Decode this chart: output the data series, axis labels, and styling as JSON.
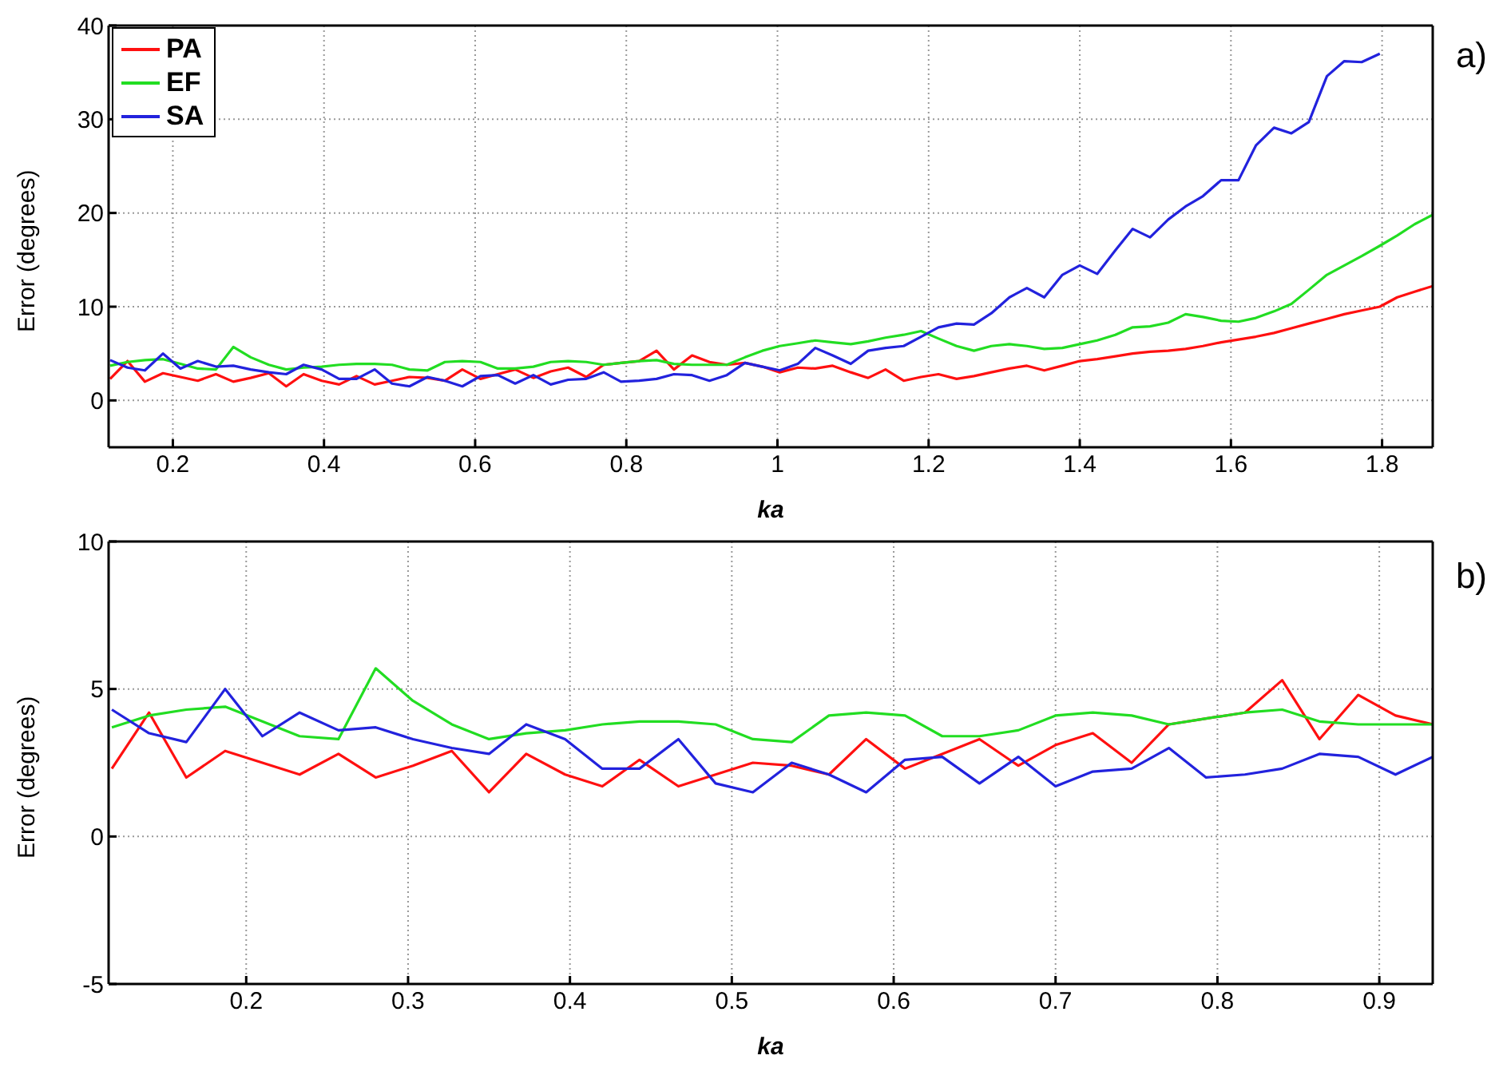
{
  "chart_data": [
    {
      "type": "line",
      "xlabel": "ka",
      "ylabel": "Error (degrees)",
      "annotations": [
        "a)"
      ],
      "xlim": [
        0.115,
        1.867
      ],
      "ylim": [
        -5,
        40
      ],
      "xticks": [
        0.2,
        0.4,
        0.6,
        0.8,
        1,
        1.2,
        1.4,
        1.6,
        1.8
      ],
      "yticks": [
        0,
        10,
        20,
        30,
        40
      ],
      "grid": true,
      "legend": "top left",
      "x": [
        0.117,
        0.14,
        0.163,
        0.187,
        0.21,
        0.233,
        0.257,
        0.28,
        0.303,
        0.327,
        0.35,
        0.373,
        0.397,
        0.42,
        0.443,
        0.467,
        0.49,
        0.513,
        0.537,
        0.56,
        0.583,
        0.607,
        0.63,
        0.653,
        0.677,
        0.7,
        0.723,
        0.747,
        0.77,
        0.793,
        0.817,
        0.84,
        0.863,
        0.887,
        0.91,
        0.933,
        0.957,
        0.98,
        1.003,
        1.027,
        1.05,
        1.073,
        1.097,
        1.12,
        1.143,
        1.167,
        1.19,
        1.213,
        1.237,
        1.26,
        1.283,
        1.307,
        1.33,
        1.353,
        1.377,
        1.4,
        1.423,
        1.447,
        1.47,
        1.493,
        1.517,
        1.54,
        1.563,
        1.587,
        1.61,
        1.633,
        1.657,
        1.68,
        1.703,
        1.727,
        1.75,
        1.773,
        1.797,
        1.82,
        1.843,
        1.867
      ],
      "series": [
        {
          "name": "PA",
          "color": "#ff1010",
          "values": [
            2.3,
            4.2,
            2.0,
            2.9,
            2.5,
            2.1,
            2.8,
            2.0,
            2.4,
            2.9,
            1.5,
            2.8,
            2.1,
            1.7,
            2.6,
            1.7,
            2.1,
            2.5,
            2.4,
            2.1,
            3.3,
            2.3,
            2.8,
            3.3,
            2.4,
            3.1,
            3.5,
            2.5,
            3.8,
            4.0,
            4.2,
            5.3,
            3.3,
            4.8,
            4.1,
            3.8,
            4.0,
            3.6,
            3.0,
            3.5,
            3.4,
            3.7,
            3.0,
            2.4,
            3.3,
            2.1,
            2.5,
            2.8,
            2.3,
            2.6,
            3.0,
            3.4,
            3.7,
            3.2,
            3.7,
            4.2,
            4.4,
            4.7,
            5.0,
            5.2,
            5.3,
            5.5,
            5.8,
            6.2,
            6.5,
            6.8,
            7.2,
            7.7,
            8.2,
            8.7,
            9.2,
            9.6,
            10.0,
            11.0,
            11.6,
            12.2
          ]
        },
        {
          "name": "EF",
          "color": "#22dd22",
          "values": [
            3.7,
            4.1,
            4.3,
            4.4,
            3.9,
            3.4,
            3.3,
            5.7,
            4.6,
            3.8,
            3.3,
            3.5,
            3.6,
            3.8,
            3.9,
            3.9,
            3.8,
            3.3,
            3.2,
            4.1,
            4.2,
            4.1,
            3.4,
            3.4,
            3.6,
            4.1,
            4.2,
            4.1,
            3.8,
            4.0,
            4.2,
            4.3,
            3.9,
            3.8,
            3.8,
            3.8,
            4.6,
            5.3,
            5.8,
            6.1,
            6.4,
            6.2,
            6.0,
            6.3,
            6.7,
            7.0,
            7.4,
            6.6,
            5.8,
            5.3,
            5.8,
            6.0,
            5.8,
            5.5,
            5.6,
            6.0,
            6.4,
            7.0,
            7.8,
            7.9,
            8.3,
            9.2,
            8.9,
            8.5,
            8.4,
            8.8,
            9.5,
            10.3,
            11.8,
            13.4,
            14.4,
            15.4,
            16.5,
            17.6,
            18.8,
            19.8
          ]
        },
        {
          "name": "SA",
          "color": "#2222dd",
          "values": [
            4.3,
            3.5,
            3.2,
            5.0,
            3.4,
            4.2,
            3.6,
            3.7,
            3.3,
            3.0,
            2.8,
            3.8,
            3.3,
            2.3,
            2.3,
            3.3,
            1.8,
            1.5,
            2.5,
            2.1,
            1.5,
            2.6,
            2.7,
            1.8,
            2.7,
            1.7,
            2.2,
            2.3,
            3.0,
            2.0,
            2.1,
            2.3,
            2.8,
            2.7,
            2.1,
            2.7,
            4.0,
            3.6,
            3.2,
            3.9,
            5.6,
            4.8,
            3.9,
            5.3,
            5.6,
            5.8,
            6.8,
            7.8,
            8.2,
            8.1,
            9.3,
            11.0,
            12.0,
            11.0,
            13.4,
            14.4,
            13.5,
            16.0,
            18.3,
            17.4,
            19.3,
            20.7,
            21.8,
            23.5,
            23.5,
            27.2,
            29.1,
            28.5,
            29.7,
            34.6,
            36.2,
            36.1,
            37.0,
            null,
            null,
            null
          ]
        }
      ]
    },
    {
      "type": "line",
      "xlabel": "ka",
      "ylabel": "Error (degrees)",
      "annotations": [
        "b)"
      ],
      "xlim": [
        0.115,
        0.933
      ],
      "ylim": [
        -5,
        10
      ],
      "xticks": [
        0.2,
        0.3,
        0.4,
        0.5,
        0.6,
        0.7,
        0.8,
        0.9
      ],
      "yticks": [
        -5,
        0,
        5,
        10
      ],
      "grid": true,
      "x": [
        0.117,
        0.14,
        0.163,
        0.187,
        0.21,
        0.233,
        0.257,
        0.28,
        0.303,
        0.327,
        0.35,
        0.373,
        0.397,
        0.42,
        0.443,
        0.467,
        0.49,
        0.513,
        0.537,
        0.56,
        0.583,
        0.607,
        0.63,
        0.653,
        0.677,
        0.7,
        0.723,
        0.747,
        0.77,
        0.793,
        0.817,
        0.84,
        0.863,
        0.887,
        0.91,
        0.933
      ],
      "series": [
        {
          "color": "#ff1010",
          "values": [
            2.3,
            4.2,
            2.0,
            2.9,
            2.5,
            2.1,
            2.8,
            2.0,
            2.4,
            2.9,
            1.5,
            2.8,
            2.1,
            1.7,
            2.6,
            1.7,
            2.1,
            2.5,
            2.4,
            2.1,
            3.3,
            2.3,
            2.8,
            3.3,
            2.4,
            3.1,
            3.5,
            2.5,
            3.8,
            4.0,
            4.2,
            5.3,
            3.3,
            4.8,
            4.1,
            3.8
          ]
        },
        {
          "color": "#22dd22",
          "values": [
            3.7,
            4.1,
            4.3,
            4.4,
            3.9,
            3.4,
            3.3,
            5.7,
            4.6,
            3.8,
            3.3,
            3.5,
            3.6,
            3.8,
            3.9,
            3.9,
            3.8,
            3.3,
            3.2,
            4.1,
            4.2,
            4.1,
            3.4,
            3.4,
            3.6,
            4.1,
            4.2,
            4.1,
            3.8,
            4.0,
            4.2,
            4.3,
            3.9,
            3.8,
            3.8,
            3.8
          ]
        },
        {
          "color": "#2222dd",
          "values": [
            4.3,
            3.5,
            3.2,
            5.0,
            3.4,
            4.2,
            3.6,
            3.7,
            3.3,
            3.0,
            2.8,
            3.8,
            3.3,
            2.3,
            2.3,
            3.3,
            1.8,
            1.5,
            2.5,
            2.1,
            1.5,
            2.6,
            2.7,
            1.8,
            2.7,
            1.7,
            2.2,
            2.3,
            3.0,
            2.0,
            2.1,
            2.3,
            2.8,
            2.7,
            2.1,
            2.7
          ]
        }
      ]
    }
  ]
}
